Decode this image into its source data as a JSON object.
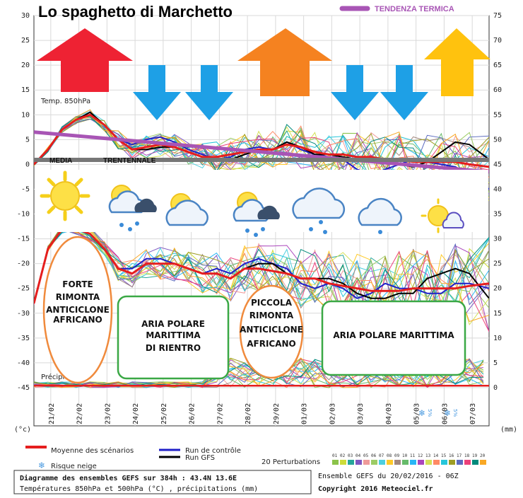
{
  "header": {
    "title": "Lo spaghetto di Marchetto",
    "trend_label": "TENDENZA TERMICA"
  },
  "panel_labels": {
    "temp_label": "Temp. 850hPa",
    "precip_label": "Précipitations",
    "media_word": "MEDIA",
    "trentennale_word": "TRENTENNALE",
    "left_unit": "(°c)",
    "right_unit": "(mm)"
  },
  "annotations": {
    "forte": [
      "FORTE",
      "RIMONTA",
      "ANTICICLONE",
      "AFRICANO"
    ],
    "aria_rientro": [
      "ARIA POLARE",
      "MARITTIMA",
      "DI RIENTRO"
    ],
    "piccola": [
      "PICCOLA",
      "RIMONTA",
      "ANTICICLONE",
      "AFRICANO"
    ],
    "aria_marittima": [
      "ARIA POLARE MARITTIMA"
    ]
  },
  "legend": {
    "mean": "Moyenne des scénarios",
    "control": "Run de contrôle",
    "gfs": "Run GFS",
    "snow": "Risque neige",
    "perturb_label": "20 Perturbations",
    "perturb_nums": [
      "01",
      "02",
      "03",
      "04",
      "05",
      "06",
      "07",
      "08",
      "09",
      "10",
      "11",
      "12",
      "13",
      "14",
      "15",
      "16",
      "17",
      "18",
      "19",
      "20"
    ],
    "snow_pct": "5%"
  },
  "info": {
    "line1": "Diagramme des ensembles GEFS sur 384h : 43.4N 13.6E",
    "line2": "Températures 850hPa et 500hPa (°C) , précipitations (mm)",
    "ensemble": "Ensemble GEFS du 20/02/2016 - 06Z",
    "copyright": "Copyright 2016 Meteociel.fr"
  },
  "colors": {
    "mean": "#e51e1e",
    "control": "#1f1fc8",
    "gfs": "#000000",
    "trend": "#a855b5",
    "media_line": "#777777",
    "arrow_red": "#ee2233",
    "arrow_orange": "#f58220",
    "arrow_yellow": "#ffc20e",
    "arrow_blue": "#1ea0e6",
    "oval": "#f08a3c",
    "box": "#3aa845"
  },
  "arrows": [
    {
      "dir": "up",
      "color": "red",
      "icon": "arrow-up-red"
    },
    {
      "dir": "down",
      "color": "blue",
      "icon": "arrow-down-blue"
    },
    {
      "dir": "down",
      "color": "blue",
      "icon": "arrow-down-blue"
    },
    {
      "dir": "up",
      "color": "orange",
      "icon": "arrow-up-orange"
    },
    {
      "dir": "down",
      "color": "blue",
      "icon": "arrow-down-blue"
    },
    {
      "dir": "down",
      "color": "blue",
      "icon": "arrow-down-blue"
    },
    {
      "dir": "up",
      "color": "yellow",
      "icon": "arrow-up-yellow"
    }
  ],
  "weather_icons": [
    "sun-icon",
    "sun-cloud-rain-icon",
    "sun-cloud-icon",
    "sun-cloud-rain-icon",
    "cloud-rain-icon",
    "cloud-drizzle-icon",
    "sun-cloud-small-icon"
  ],
  "chart_data": {
    "type": "line",
    "x_labels": [
      "21/02",
      "22/02",
      "23/02",
      "24/02",
      "25/02",
      "26/02",
      "27/02",
      "28/02",
      "29/02",
      "01/03",
      "02/03",
      "03/03",
      "04/03",
      "05/03",
      "06/03",
      "07/03"
    ],
    "y_left_ticks": [
      30,
      25,
      20,
      15,
      10,
      5,
      0,
      -5,
      -10,
      -15,
      -20,
      -25,
      -30,
      -35,
      -40,
      -45
    ],
    "y_right_ticks": [
      75,
      70,
      65,
      60,
      55,
      50,
      45,
      40,
      35,
      30,
      25,
      20,
      15,
      10,
      5,
      0
    ],
    "ylim_left": [
      -45,
      30
    ],
    "ylim_right": [
      0,
      75
    ],
    "xlim_days": [
      0,
      16.2
    ],
    "grid": true,
    "series": [
      {
        "name": "Moyenne des scénarios",
        "role": "t850",
        "x_days": [
          0,
          0.5,
          1,
          1.5,
          2,
          2.5,
          3,
          3.5,
          4,
          4.5,
          5,
          5.5,
          6,
          6.5,
          7,
          7.5,
          8,
          8.5,
          9,
          9.5,
          10,
          10.5,
          11,
          11.5,
          12,
          12.5,
          13,
          13.5,
          14,
          14.5,
          15,
          15.5,
          16.2
        ],
        "values": [
          0,
          3,
          7,
          9,
          10,
          8,
          5,
          3,
          3.5,
          4,
          3.5,
          2.5,
          1.5,
          1.5,
          2,
          2.5,
          3,
          3,
          4,
          3.5,
          2.5,
          2,
          2,
          1.5,
          1.5,
          1,
          1,
          0.5,
          0.5,
          0.5,
          0.5,
          0,
          -0.5
        ]
      },
      {
        "name": "Moyenne des scénarios",
        "role": "t500",
        "x_days": [
          0,
          0.5,
          1,
          1.5,
          2,
          2.5,
          3,
          3.5,
          4,
          4.5,
          5,
          5.5,
          6,
          6.5,
          7,
          7.5,
          8,
          8.5,
          9,
          9.5,
          10,
          10.5,
          11,
          11.5,
          12,
          12.5,
          13,
          13.5,
          14,
          14.5,
          15,
          15.5,
          16.2
        ],
        "values": [
          -28,
          -17,
          -13,
          -13,
          -14,
          -17,
          -21,
          -22,
          -20,
          -20,
          -20,
          -21,
          -22,
          -22,
          -23,
          -21,
          -21,
          -21.5,
          -22,
          -23,
          -23,
          -24,
          -24.5,
          -25,
          -25.5,
          -25.5,
          -25.5,
          -25,
          -25,
          -25,
          -25,
          -24.5,
          -24
        ]
      },
      {
        "name": "Run GFS",
        "role": "t850",
        "x_days": [
          0,
          0.5,
          1,
          1.5,
          2,
          2.5,
          3,
          3.5,
          4,
          4.5,
          5,
          5.5,
          6,
          6.5,
          7,
          7.5,
          8,
          8.5,
          9,
          9.5,
          10,
          10.5,
          11,
          11.5,
          12,
          12.5,
          13,
          13.5,
          14,
          14.5,
          15,
          15.5,
          16.2
        ],
        "values": [
          0,
          3,
          7,
          9,
          10.5,
          8,
          5,
          3,
          3,
          3.5,
          3.5,
          2.5,
          1.5,
          1,
          1,
          2,
          3,
          3,
          4.5,
          3.5,
          2,
          2,
          1.5,
          1,
          1,
          0.5,
          0,
          -0.5,
          0.5,
          2.5,
          4.5,
          4,
          1
        ]
      },
      {
        "name": "Run GFS",
        "role": "t500",
        "x_days": [
          0,
          0.5,
          1,
          1.5,
          2,
          2.5,
          3,
          3.5,
          4,
          4.5,
          5,
          5.5,
          6,
          6.5,
          7,
          7.5,
          8,
          8.5,
          9,
          9.5,
          10,
          10.5,
          11,
          11.5,
          12,
          12.5,
          13,
          13.5,
          14,
          14.5,
          15,
          15.5,
          16.2
        ],
        "values": [
          -28,
          -17,
          -13,
          -13,
          -14,
          -17,
          -21,
          -22,
          -20,
          -20,
          -20,
          -21,
          -22,
          -22,
          -23,
          -21,
          -20,
          -20,
          -22,
          -23,
          -23,
          -23,
          -24,
          -26,
          -27,
          -27,
          -26,
          -26,
          -23,
          -22,
          -21,
          -22,
          -27
        ]
      },
      {
        "name": "Run de contrôle",
        "role": "t850",
        "x_days": [
          0,
          0.5,
          1,
          1.5,
          2,
          2.5,
          3,
          3.5,
          4,
          4.5,
          5,
          5.5,
          6,
          6.5,
          7,
          7.5,
          8,
          8.5,
          9,
          9.5,
          10,
          10.5,
          11,
          11.5,
          12,
          12.5,
          13,
          13.5,
          14,
          14.5,
          15,
          15.5,
          16.2
        ],
        "values": [
          0,
          3,
          7,
          9,
          10,
          8,
          5,
          4,
          5,
          5.5,
          4.5,
          3,
          2,
          1,
          1.5,
          3,
          3.5,
          3,
          4.5,
          3,
          2,
          1.5,
          1,
          -1,
          -2,
          -1,
          0,
          1,
          0.5,
          0,
          -0.5,
          -2,
          -5
        ]
      },
      {
        "name": "Run de contrôle",
        "role": "t500",
        "x_days": [
          0,
          0.5,
          1,
          1.5,
          2,
          2.5,
          3,
          3.5,
          4,
          4.5,
          5,
          5.5,
          6,
          6.5,
          7,
          7.5,
          8,
          8.5,
          9,
          9.5,
          10,
          10.5,
          11,
          11.5,
          12,
          12.5,
          13,
          13.5,
          14,
          14.5,
          15,
          15.5,
          16.2
        ],
        "values": [
          -28,
          -17,
          -13,
          -13,
          -14,
          -17,
          -21,
          -21,
          -19,
          -19,
          -20,
          -21,
          -22,
          -21,
          -22,
          -20,
          -19,
          -20,
          -21,
          -24,
          -25,
          -24,
          -25,
          -27,
          -26,
          -24,
          -25,
          -25,
          -26,
          -26,
          -24,
          -24,
          -25
        ]
      },
      {
        "name": "TENDENZA TERMICA",
        "role": "trend",
        "x_days": [
          0,
          16.2
        ],
        "values": [
          6.5,
          -1.5
        ]
      }
    ]
  }
}
